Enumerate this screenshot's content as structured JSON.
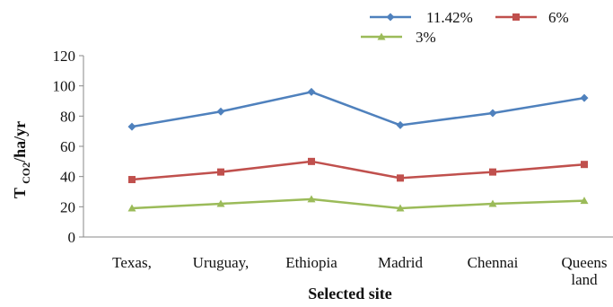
{
  "chart_data": {
    "type": "line",
    "categories": [
      [
        "Texas,"
      ],
      [
        "Uruguay,"
      ],
      [
        "Ethiopia"
      ],
      [
        "Madrid"
      ],
      [
        "Chennai"
      ],
      [
        "Queens",
        "land"
      ]
    ],
    "series": [
      {
        "name": "11.42%",
        "color": "#4F81BD",
        "marker": "diamond",
        "values": [
          73,
          83,
          96,
          74,
          82,
          92
        ]
      },
      {
        "name": "6%",
        "color": "#C0504D",
        "marker": "square",
        "values": [
          38,
          43,
          50,
          39,
          43,
          48
        ]
      },
      {
        "name": "3%",
        "color": "#9BBB59",
        "marker": "triangle",
        "values": [
          19,
          22,
          25,
          19,
          22,
          24
        ]
      }
    ],
    "xlabel": "Selected site",
    "ylabel": {
      "main": "T ",
      "sub": "CO2",
      "rest": "/ha/yr"
    },
    "ylim": [
      0,
      120
    ],
    "yticks": [
      0,
      20,
      40,
      60,
      80,
      100,
      120
    ],
    "grid": false,
    "legend_position": "top-right"
  }
}
